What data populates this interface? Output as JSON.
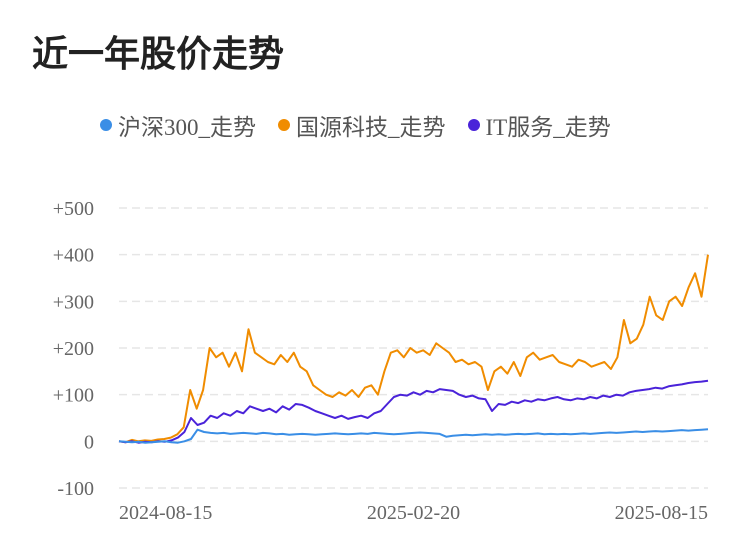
{
  "title": "近一年股价走势",
  "legend": [
    {
      "label": "沪深300_走势",
      "color": "#3a8ee6"
    },
    {
      "label": "国源科技_走势",
      "color": "#f08c00"
    },
    {
      "label": "IT服务_走势",
      "color": "#4a23d9"
    }
  ],
  "chart_data": {
    "type": "line",
    "y_ticks": [
      "+500",
      "+400",
      "+300",
      "+200",
      "+100",
      "0",
      "-100"
    ],
    "y_tick_values": [
      500,
      400,
      300,
      200,
      100,
      0,
      -100
    ],
    "ylim": [
      -100,
      500
    ],
    "x_ticks": [
      "2024-08-15",
      "2025-02-20",
      "2025-08-15"
    ],
    "grid": true,
    "legend_position": "top",
    "series": [
      {
        "name": "沪深300_走势",
        "color": "#3a8ee6",
        "values": [
          0,
          -1,
          -2,
          -1,
          -3,
          -2,
          -1,
          0,
          -2,
          -3,
          0,
          5,
          25,
          20,
          18,
          17,
          18,
          16,
          17,
          18,
          17,
          16,
          18,
          17,
          15,
          16,
          14,
          15,
          16,
          15,
          14,
          15,
          16,
          17,
          16,
          15,
          16,
          17,
          16,
          18,
          17,
          16,
          15,
          16,
          17,
          18,
          19,
          18,
          17,
          16,
          10,
          12,
          13,
          14,
          13,
          14,
          15,
          14,
          15,
          14,
          15,
          16,
          15,
          16,
          17,
          15,
          16,
          15,
          16,
          15,
          16,
          17,
          16,
          17,
          18,
          19,
          18,
          19,
          20,
          21,
          20,
          21,
          22,
          21,
          22,
          23,
          24,
          23,
          24,
          25,
          26
        ]
      },
      {
        "name": "国源科技_走势",
        "color": "#f08c00",
        "values": [
          0,
          -2,
          3,
          0,
          2,
          1,
          4,
          5,
          8,
          15,
          30,
          110,
          70,
          110,
          200,
          180,
          190,
          160,
          190,
          150,
          240,
          190,
          180,
          170,
          165,
          185,
          170,
          190,
          160,
          150,
          120,
          110,
          100,
          95,
          105,
          98,
          110,
          95,
          115,
          120,
          100,
          150,
          190,
          195,
          180,
          200,
          190,
          195,
          185,
          210,
          200,
          190,
          170,
          175,
          165,
          170,
          160,
          110,
          150,
          160,
          145,
          170,
          140,
          180,
          190,
          175,
          180,
          185,
          170,
          165,
          160,
          175,
          170,
          160,
          165,
          170,
          155,
          180,
          260,
          210,
          220,
          250,
          310,
          270,
          260,
          300,
          310,
          290,
          330,
          360,
          310,
          400
        ]
      },
      {
        "name": "IT服务_走势",
        "color": "#4a23d9",
        "values": [
          0,
          -2,
          0,
          -3,
          -1,
          -2,
          0,
          -1,
          2,
          8,
          20,
          50,
          35,
          40,
          55,
          50,
          60,
          55,
          65,
          60,
          75,
          70,
          65,
          70,
          62,
          75,
          68,
          80,
          78,
          72,
          65,
          60,
          55,
          50,
          55,
          48,
          52,
          55,
          50,
          60,
          65,
          80,
          95,
          100,
          98,
          105,
          100,
          108,
          105,
          112,
          110,
          108,
          100,
          95,
          98,
          92,
          90,
          65,
          80,
          78,
          85,
          82,
          88,
          85,
          90,
          88,
          92,
          95,
          90,
          88,
          92,
          90,
          95,
          92,
          98,
          95,
          100,
          98,
          105,
          108,
          110,
          112,
          115,
          113,
          118,
          120,
          122,
          125,
          127,
          128,
          130
        ]
      }
    ]
  }
}
